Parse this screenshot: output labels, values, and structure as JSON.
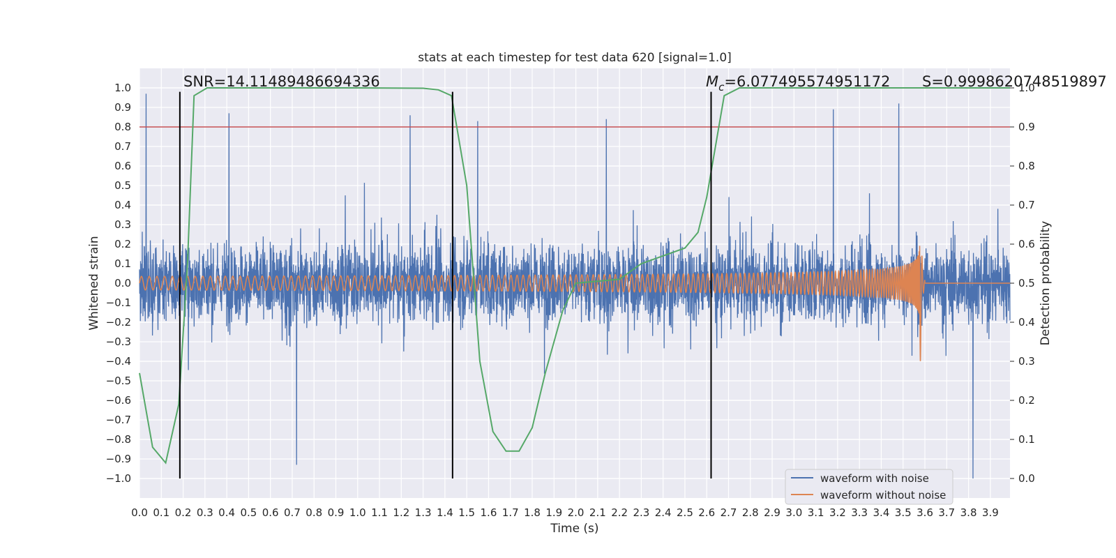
{
  "chart_data": {
    "type": "line",
    "title": "stats at each timestep for test data 620 [signal=1.0]",
    "xlabel": "Time (s)",
    "ylabel": "Whitened strain",
    "y2label": "Detection probability",
    "xlim": [
      0.0,
      3.99
    ],
    "ylim": [
      -1.1,
      1.1
    ],
    "y2lim": [
      -0.05,
      1.05
    ],
    "xticks": [
      0.0,
      0.1,
      0.2,
      0.3,
      0.4,
      0.5,
      0.6,
      0.7,
      0.8,
      0.9,
      1.0,
      1.1,
      1.2,
      1.3,
      1.4,
      1.5,
      1.6,
      1.7,
      1.8,
      1.9,
      2.0,
      2.1,
      2.2,
      2.3,
      2.4,
      2.5,
      2.6,
      2.7,
      2.8,
      2.9,
      3.0,
      3.1,
      3.2,
      3.3,
      3.4,
      3.5,
      3.6,
      3.7,
      3.8,
      3.9
    ],
    "xtick_labels": [
      "0.0",
      "0.1",
      "0.2",
      "0.3",
      "0.4",
      "0.5",
      "0.6",
      "0.7",
      "0.8",
      "0.9",
      "1.0",
      "1.1",
      "1.2",
      "1.3",
      "1.4",
      "1.5",
      "1.6",
      "1.7",
      "1.8",
      "1.9",
      "2.0",
      "2.1",
      "2.2",
      "2.3",
      "2.4",
      "2.5",
      "2.6",
      "2.7",
      "2.8",
      "2.9",
      "3.0",
      "3.1",
      "3.2",
      "3.3",
      "3.4",
      "3.5",
      "3.6",
      "3.7",
      "3.8",
      "3.9"
    ],
    "yticks": [
      1.0,
      0.9,
      0.8,
      0.7,
      0.6,
      0.5,
      0.4,
      0.3,
      0.2,
      0.1,
      0.0,
      -0.1,
      -0.2,
      -0.3,
      -0.4,
      -0.5,
      -0.6,
      -0.7,
      -0.8,
      -0.9,
      -1.0
    ],
    "ytick_labels": [
      "1.0",
      "0.9",
      "0.8",
      "0.7",
      "0.6",
      "0.5",
      "0.4",
      "0.3",
      "0.2",
      "0.1",
      "0.0",
      "−0.1",
      "−0.2",
      "−0.3",
      "−0.4",
      "−0.5",
      "−0.6",
      "−0.7",
      "−0.8",
      "−0.9",
      "−1.0"
    ],
    "y2ticks": [
      1.0,
      0.9,
      0.8,
      0.7,
      0.6,
      0.5,
      0.4,
      0.3,
      0.2,
      0.1,
      0.0
    ],
    "y2tick_labels": [
      "1.0",
      "0.9",
      "0.8",
      "0.7",
      "0.6",
      "0.5",
      "0.4",
      "0.3",
      "0.2",
      "0.1",
      "0.0"
    ],
    "grid": true,
    "legend": {
      "placement": "bottom-right",
      "entries": [
        {
          "label": "waveform with noise",
          "color": "#4c72b0"
        },
        {
          "label": "waveform without noise",
          "color": "#dd8452"
        }
      ]
    },
    "series": [
      {
        "name": "waveform with noise",
        "axis": "left",
        "color": "#4c72b0",
        "kind": "noise",
        "duration_s": 3.99,
        "typical_amplitude": 0.3,
        "max_excursions": [
          {
            "x": 0.03,
            "y": 0.97
          },
          {
            "x": 0.41,
            "y": 0.87
          },
          {
            "x": 0.72,
            "y": -0.93
          },
          {
            "x": 1.24,
            "y": 0.86
          },
          {
            "x": 1.55,
            "y": 0.83
          },
          {
            "x": 2.14,
            "y": 0.84
          },
          {
            "x": 3.48,
            "y": 0.92
          },
          {
            "x": 3.82,
            "y": -1.0
          },
          {
            "x": 3.18,
            "y": 0.89
          }
        ]
      },
      {
        "name": "waveform without noise",
        "axis": "left",
        "color": "#dd8452",
        "kind": "chirp",
        "start_amplitude": 0.035,
        "peak_amplitude": 0.28,
        "start_frequency_hz": 28,
        "merger_time_s": 3.58,
        "ringdown_min": -0.38
      },
      {
        "name": "detection probability",
        "axis": "right",
        "color": "#55a868",
        "x": [
          0.0,
          0.06,
          0.12,
          0.18,
          0.22,
          0.25,
          0.31,
          0.37,
          0.5,
          1.0,
          1.3,
          1.37,
          1.43,
          1.5,
          1.56,
          1.62,
          1.68,
          1.74,
          1.8,
          1.86,
          1.94,
          2.0,
          2.2,
          2.3,
          2.4,
          2.5,
          2.56,
          2.6,
          2.68,
          2.75,
          3.0,
          3.99
        ],
        "y": [
          0.27,
          0.08,
          0.04,
          0.19,
          0.55,
          0.98,
          1.0,
          1.0,
          1.0,
          1.0,
          0.999,
          0.995,
          0.98,
          0.75,
          0.3,
          0.12,
          0.07,
          0.07,
          0.13,
          0.27,
          0.43,
          0.5,
          0.51,
          0.55,
          0.57,
          0.59,
          0.63,
          0.72,
          0.98,
          1.0,
          1.0,
          1.0
        ]
      }
    ],
    "threshold_line": {
      "axis": "right",
      "y": 0.9,
      "color": "#c44e52"
    },
    "vertical_markers": [
      {
        "x": 0.185,
        "y_from": -1.0,
        "y_to": 0.98,
        "color": "#000000"
      },
      {
        "x": 1.435,
        "y_from": -1.0,
        "y_to": 0.98,
        "color": "#000000"
      },
      {
        "x": 2.62,
        "y_from": -1.0,
        "y_to": 0.98,
        "color": "#000000"
      }
    ],
    "annotations": [
      {
        "text": "SNR=14.11489486694336",
        "x": 0.2,
        "y": 1.0
      },
      {
        "text": "M",
        "sub": "c",
        "rest": "=6.077495574951172",
        "x": 2.6,
        "y": 1.0
      },
      {
        "text": "S=0.9998620748519897",
        "x": 3.6,
        "y": 1.0
      }
    ]
  }
}
